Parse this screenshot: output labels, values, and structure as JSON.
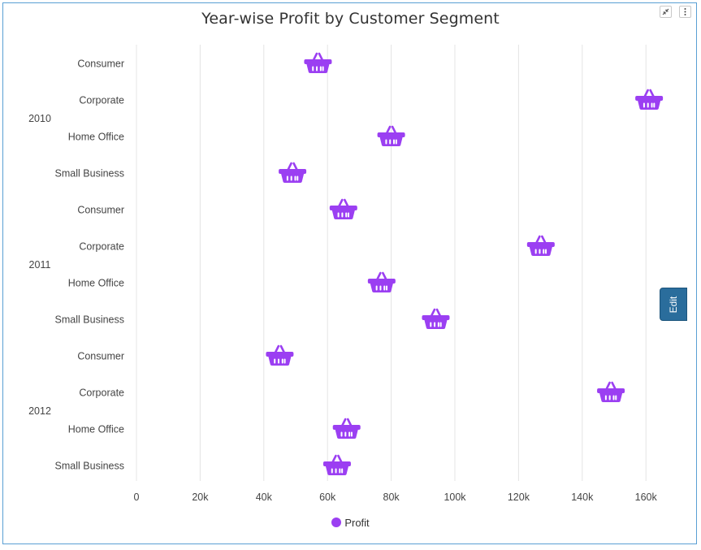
{
  "chart_data": {
    "type": "scatter",
    "title": "Year-wise Profit by Customer Segment",
    "orientation": "horizontal",
    "groups": [
      "2010",
      "2011",
      "2012"
    ],
    "categories": [
      "Consumer",
      "Corporate",
      "Home Office",
      "Small Business"
    ],
    "x_ticks": [
      "0",
      "20k",
      "40k",
      "60k",
      "80k",
      "100k",
      "120k",
      "140k",
      "160k"
    ],
    "xlim": [
      0,
      160000
    ],
    "series": [
      {
        "name": "Profit",
        "marker": "basket-icon",
        "color": "#9b3ff2",
        "values": [
          [
            57000,
            161000,
            80000,
            49000
          ],
          [
            65000,
            127000,
            77000,
            94000
          ],
          [
            45000,
            149000,
            66000,
            63000
          ]
        ]
      }
    ],
    "grid": "vertical",
    "legend_position": "bottom"
  },
  "toolbar": {
    "collapse_icon": "collapse-icon",
    "menu_icon": "more-vertical-icon",
    "edit_label": "Edit"
  }
}
